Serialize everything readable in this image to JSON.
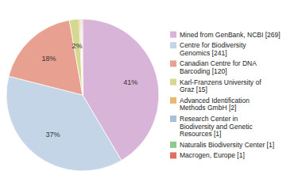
{
  "chart_data": {
    "type": "pie",
    "categories": [
      "Mined from GenBank, NCBI [269]",
      "Centre for Biodiversity\nGenomics [241]",
      "Canadian Centre for DNA\nBarcoding [120]",
      "Karl-Franzens University of\nGraz [15]",
      "Advanced Identification\nMethods GmbH [2]",
      "Research Center in\nBiodiversity and Genetic\nResources [1]",
      "Naturalis Biodiversity Center [1]",
      "Macrogen, Europe [1]"
    ],
    "values": [
      41,
      37,
      18,
      2,
      0.31,
      0.15,
      0.15,
      0.15
    ],
    "value_labels": [
      "41%",
      "37%",
      "18%",
      "2%",
      null,
      null,
      null,
      null
    ],
    "colors": [
      "#d8b4d8",
      "#c5d5e8",
      "#e8a090",
      "#d4d890",
      "#e8b870",
      "#a8c0d8",
      "#90c890",
      "#e07060"
    ],
    "data_labels": true,
    "legend": "right"
  }
}
